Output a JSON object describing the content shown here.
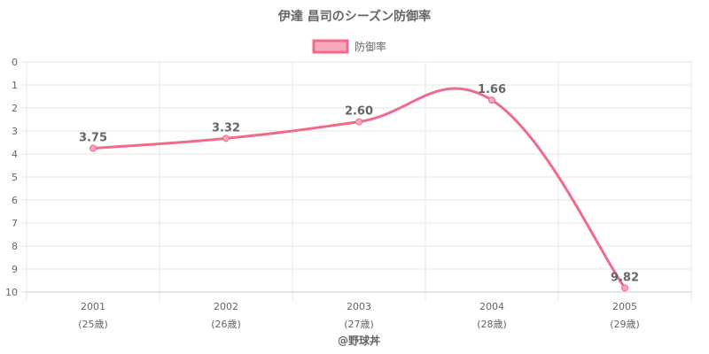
{
  "chart_data": {
    "type": "line",
    "title": "伊達 昌司のシーズン防御率",
    "categories": [
      "2001",
      "2002",
      "2003",
      "2004",
      "2005"
    ],
    "sublabels": [
      "(25歳)",
      "(26歳)",
      "(27歳)",
      "(28歳)",
      "(29歳)"
    ],
    "series": [
      {
        "name": "防御率",
        "values": [
          3.75,
          3.32,
          2.6,
          1.66,
          9.82
        ],
        "labels": [
          "3.75",
          "3.32",
          "2.60",
          "1.66",
          "9.82"
        ]
      }
    ],
    "ylim": [
      0,
      10
    ],
    "y_ticks": [
      "0",
      "1",
      "2",
      "3",
      "4",
      "5",
      "6",
      "7",
      "8",
      "9",
      "10"
    ],
    "y_reversed": true,
    "grid": true,
    "legend_position": "top-center",
    "credit": "@野球丼",
    "colors": {
      "line": "#f06a8a",
      "fill": "#f7a9bb",
      "grid": "#e6e6e6",
      "text": "#666666"
    }
  }
}
